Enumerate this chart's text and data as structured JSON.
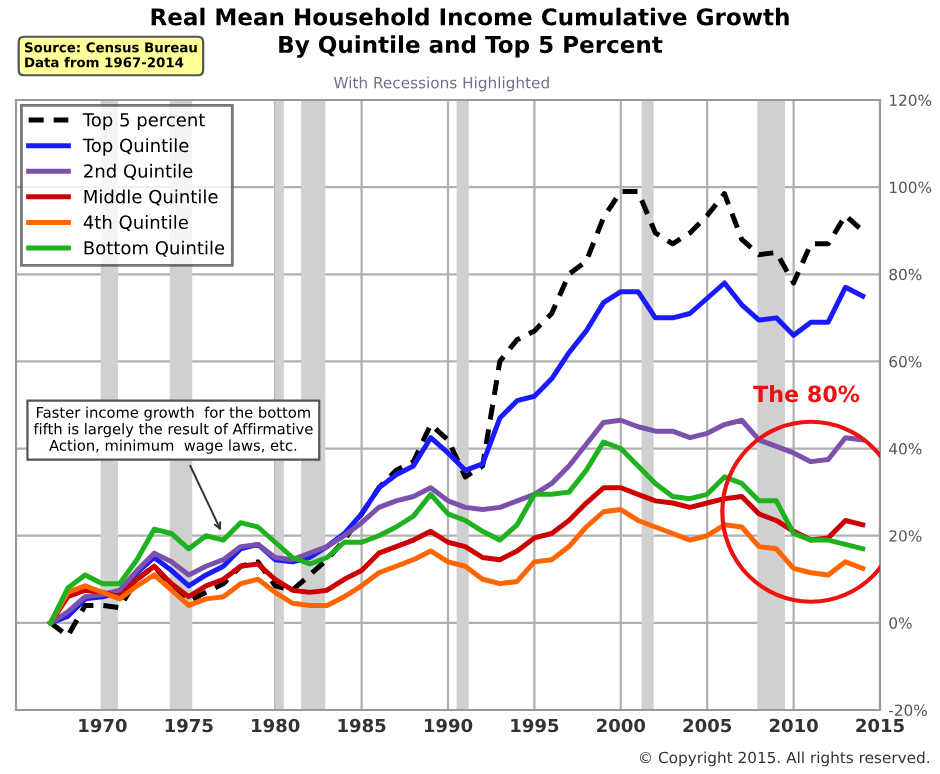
{
  "chart_data": {
    "type": "line",
    "title": "Real Mean Household Income Cumulative Growth\nBy Quintile and Top 5 Percent",
    "subtitle": "With Recessions Highlighted",
    "x": [
      1967,
      1968,
      1969,
      1970,
      1971,
      1972,
      1973,
      1974,
      1975,
      1976,
      1977,
      1978,
      1979,
      1980,
      1981,
      1982,
      1983,
      1984,
      1985,
      1986,
      1987,
      1988,
      1989,
      1990,
      1991,
      1992,
      1993,
      1994,
      1995,
      1996,
      1997,
      1998,
      1999,
      2000,
      2001,
      2002,
      2003,
      2004,
      2005,
      2006,
      2007,
      2008,
      2009,
      2010,
      2011,
      2012,
      2013,
      2014
    ],
    "series": [
      {
        "name": "Top 5 percent",
        "color": "#000000",
        "line_style": "dashed",
        "values": [
          0,
          -3,
          4,
          4,
          3.5,
          10,
          13,
          8.5,
          5,
          7,
          9,
          13,
          14,
          8.5,
          7.5,
          11,
          14.5,
          19,
          25,
          31,
          35,
          37,
          45.5,
          42,
          33.5,
          36,
          60,
          65,
          67,
          71,
          80,
          83,
          93,
          99,
          99,
          89.5,
          87,
          89.5,
          93.5,
          98.5,
          88,
          84.5,
          85,
          78,
          87,
          87,
          93.5,
          90
        ]
      },
      {
        "name": "Top Quintile",
        "color": "#1a1aff",
        "values": [
          0,
          1.5,
          5.5,
          6,
          7,
          11.5,
          15,
          12,
          8.5,
          11,
          13,
          17,
          18,
          14.5,
          14,
          15,
          17.5,
          20.5,
          25,
          31,
          34,
          36,
          42.5,
          39,
          35,
          36.5,
          47,
          51,
          52,
          56,
          62,
          67,
          73.5,
          76,
          76,
          70,
          70,
          71,
          74.5,
          78,
          73,
          69.5,
          70,
          66,
          69,
          69,
          77,
          75
        ]
      },
      {
        "name": "2nd Quintile",
        "color": "#7b52ab",
        "values": [
          0,
          2.5,
          6,
          6.5,
          7.5,
          12,
          16,
          14,
          11,
          13,
          14.5,
          17.5,
          18,
          15,
          14.5,
          16,
          17.5,
          20,
          23,
          26.5,
          28,
          29,
          31,
          28,
          26.5,
          26,
          26.5,
          28,
          29.5,
          32,
          36,
          41,
          46,
          46.5,
          45,
          44,
          44,
          42.5,
          43.5,
          45.5,
          46.5,
          42,
          40.5,
          39,
          37,
          37.5,
          42.5,
          42
        ]
      },
      {
        "name": "Middle Quintile",
        "color": "#cc0000",
        "values": [
          0,
          6,
          7.5,
          7,
          6,
          10,
          13,
          9,
          6,
          8.5,
          10,
          13,
          13.5,
          10,
          7.5,
          7,
          7.5,
          10,
          12,
          16,
          17.5,
          19,
          21,
          18.5,
          17.5,
          15,
          14.5,
          16.5,
          19.5,
          20.5,
          23.5,
          27.5,
          31,
          31,
          29.5,
          28,
          27.5,
          26.5,
          27.5,
          28.5,
          29,
          25,
          23.5,
          21,
          19,
          19.5,
          23.5,
          22.5
        ]
      },
      {
        "name": "4th Quintile",
        "color": "#ff6600",
        "values": [
          0,
          7,
          8.5,
          7,
          5.5,
          8.5,
          11,
          7.5,
          4,
          5.5,
          6,
          9,
          10,
          7,
          4.5,
          4,
          4,
          6,
          8.5,
          11.5,
          13,
          14.5,
          16.5,
          14,
          13,
          10,
          9,
          9.5,
          14,
          14.5,
          17.5,
          22,
          25.5,
          26,
          23.5,
          22,
          20.5,
          19,
          20,
          22.5,
          22,
          17.5,
          17,
          12.5,
          11.5,
          11,
          14,
          12.5
        ]
      },
      {
        "name": "Bottom Quintile",
        "color": "#1fb21f",
        "values": [
          0,
          8,
          11,
          9,
          9,
          14.5,
          21.5,
          20.5,
          17,
          20,
          19,
          23,
          22,
          18.5,
          15,
          13.5,
          15,
          18.5,
          18.5,
          20,
          22,
          24.5,
          29.5,
          25,
          23.5,
          21,
          19,
          22.5,
          29.5,
          29.5,
          30,
          35,
          41.5,
          40,
          36,
          32,
          29,
          28.5,
          29.5,
          33.5,
          32,
          28,
          28,
          20.5,
          19,
          19,
          18,
          17
        ]
      }
    ],
    "xlim": [
      1965,
      2015
    ],
    "xticks": [
      1970,
      1975,
      1980,
      1985,
      1990,
      1995,
      2000,
      2005,
      2010,
      2015
    ],
    "ylim": [
      -20,
      120
    ],
    "yticks": [
      {
        "value": -20,
        "label": "-20%"
      },
      {
        "value": 0,
        "label": "0%"
      },
      {
        "value": 20,
        "label": "20%"
      },
      {
        "value": 40,
        "label": "40%"
      },
      {
        "value": 60,
        "label": "60%"
      },
      {
        "value": 80,
        "label": "80%"
      },
      {
        "value": 100,
        "label": "100%"
      },
      {
        "value": 120,
        "label": "120%"
      }
    ],
    "bands": [
      {
        "axis": "x",
        "from": 1969.9,
        "to": 1970.9,
        "color": "#d0d0d0"
      },
      {
        "axis": "x",
        "from": 1973.9,
        "to": 1975.2,
        "color": "#d0d0d0"
      },
      {
        "axis": "x",
        "from": 1980.0,
        "to": 1980.5,
        "color": "#d0d0d0"
      },
      {
        "axis": "x",
        "from": 1981.5,
        "to": 1982.9,
        "color": "#d0d0d0"
      },
      {
        "axis": "x",
        "from": 1990.5,
        "to": 1991.2,
        "color": "#d0d0d0"
      },
      {
        "axis": "x",
        "from": 2001.2,
        "to": 2001.9,
        "color": "#d0d0d0"
      },
      {
        "axis": "x",
        "from": 2007.9,
        "to": 2009.5,
        "color": "#d0d0d0"
      }
    ],
    "annotations": [
      "Source: Census Bureau\nData from 1967-2014",
      {
        "text": "Faster income growth  for the bottom\nfifth is largely the result of Affirmative\nAction, minimum  wage laws, etc.",
        "x": 1977,
        "y": 20
      },
      "The 80%",
      "© Copyright 2015. All rights reserved."
    ],
    "grid": true,
    "legend": "top left"
  }
}
